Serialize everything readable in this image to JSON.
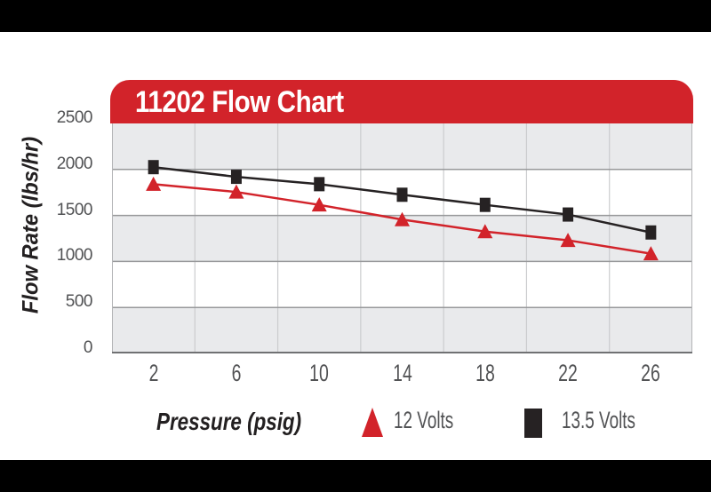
{
  "header": {
    "title": "11202 Flow Chart"
  },
  "colors": {
    "header_red": "#D2232A",
    "letterbox_black": "#000000",
    "band_gray": "#E9EAEC",
    "grid_horizontal": "#97989A",
    "grid_vertical": "#CBCCCE",
    "plot_side_border": "#B3B4B6",
    "axis_baseline": "#707173",
    "tick_label_gray": "#515254",
    "title_black": "#232021",
    "series_12v_red": "#D2232A",
    "series_13_5v_black": "#262223"
  },
  "chart_data": {
    "type": "line",
    "title": "11202 Flow Chart",
    "xlabel": "Pressure (psig)",
    "ylabel": "Flow Rate (lbs/hr)",
    "categories": [
      2,
      6,
      10,
      14,
      18,
      22,
      26
    ],
    "y_ticks": [
      2500,
      2000,
      1500,
      1000,
      500,
      0
    ],
    "ylim": [
      0,
      2500
    ],
    "grid": "horizontal gridlines every 500; vertical category separators; alternating gray/white horizontal bands",
    "legend_position": "bottom",
    "band_shading": [
      [
        2500,
        2000
      ],
      [
        1500,
        1000
      ],
      [
        500,
        0
      ]
    ],
    "series": [
      {
        "name": "12 Volts",
        "marker": "triangle",
        "color": "#D2232A",
        "values": [
          1840,
          1755,
          1615,
          1455,
          1325,
          1230,
          1085
        ]
      },
      {
        "name": "13.5 Volts",
        "marker": "square",
        "color": "#262223",
        "values": [
          2025,
          1920,
          1840,
          1725,
          1615,
          1510,
          1315
        ]
      }
    ]
  }
}
